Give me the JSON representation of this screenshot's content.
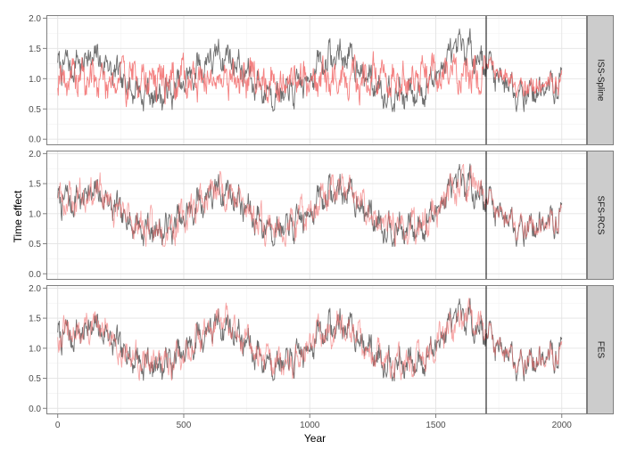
{
  "chart_data": {
    "type": "line",
    "xlabel": "Year",
    "ylabel": "Time effect",
    "xlim": [
      -45,
      2100
    ],
    "ylim": [
      -0.1,
      2.05
    ],
    "x_ticks": [
      0,
      500,
      1000,
      1500,
      2000
    ],
    "y_ticks": [
      0.0,
      0.5,
      1.0,
      1.5,
      2.0
    ],
    "x_tick_labels": [
      "0",
      "500",
      "1000",
      "1500",
      "2000"
    ],
    "y_tick_labels": [
      "0.0",
      "0.5",
      "1.0",
      "1.5",
      "2.0"
    ],
    "grid": true,
    "vline_x": 1700,
    "facets": [
      "ISS-Spline",
      "SFS-RCS",
      "FES"
    ],
    "series_colors": {
      "reference": "#555555",
      "estimate": "#f26b6b"
    },
    "reference_anchors": {
      "x": [
        0,
        60,
        120,
        180,
        230,
        280,
        330,
        380,
        420,
        460,
        500,
        540,
        580,
        620,
        660,
        700,
        740,
        780,
        820,
        860,
        900,
        940,
        980,
        1020,
        1060,
        1100,
        1140,
        1180,
        1220,
        1260,
        1300,
        1340,
        1380,
        1420,
        1460,
        1500,
        1540,
        1580,
        1620,
        1660,
        1700,
        1740,
        1780,
        1820,
        1860,
        1900,
        1940,
        1980,
        2000
      ],
      "y": [
        1.25,
        1.2,
        1.35,
        1.3,
        1.05,
        0.9,
        0.78,
        0.72,
        0.75,
        0.8,
        0.9,
        1.1,
        1.25,
        1.35,
        1.4,
        1.3,
        1.1,
        0.95,
        0.82,
        0.75,
        0.72,
        0.8,
        0.95,
        1.15,
        1.3,
        1.35,
        1.4,
        1.25,
        1.05,
        0.9,
        0.82,
        0.75,
        0.72,
        0.75,
        0.85,
        1.05,
        1.3,
        1.45,
        1.5,
        1.4,
        1.25,
        1.1,
        0.95,
        0.85,
        0.8,
        0.78,
        0.82,
        0.9,
        0.92
      ]
    },
    "iss_spline_estimate_anchors": {
      "x": [
        0,
        100,
        200,
        300,
        400,
        500,
        600,
        700,
        800,
        900,
        1000,
        1100,
        1200,
        1300,
        1400,
        1500,
        1600,
        1700,
        1800,
        1900,
        2000
      ],
      "y": [
        1.05,
        1.0,
        0.98,
        1.02,
        0.97,
        1.0,
        1.03,
        0.98,
        1.02,
        0.98,
        1.0,
        0.97,
        1.02,
        1.0,
        0.98,
        1.02,
        1.1,
        1.12,
        1.05,
        0.9,
        0.88
      ]
    }
  }
}
